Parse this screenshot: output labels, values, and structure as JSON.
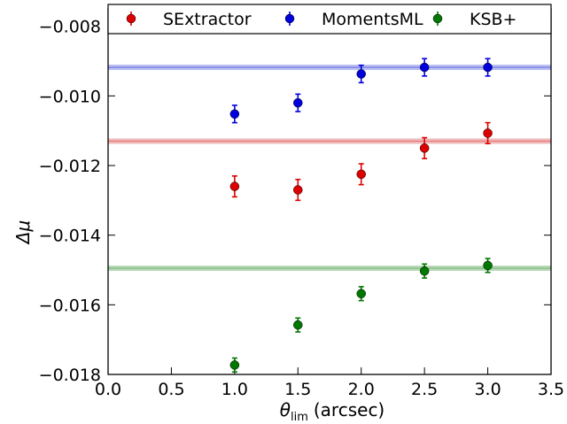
{
  "chart_data": {
    "type": "scatter",
    "xlabel_symbol": "θ",
    "xlabel_subscript": "lim",
    "xlabel_unit": "(arcsec)",
    "ylabel_symbol": "Δμ",
    "xlim": [
      0.0,
      3.5
    ],
    "ylim": [
      -0.018,
      -0.0075
    ],
    "xticks": [
      0.0,
      0.5,
      1.0,
      1.5,
      2.0,
      2.5,
      3.0,
      3.5
    ],
    "xtick_labels": [
      "0.0",
      "0.5",
      "1.0",
      "1.5",
      "2.0",
      "2.5",
      "3.0",
      "3.5"
    ],
    "yticks": [
      -0.018,
      -0.016,
      -0.014,
      -0.012,
      -0.01,
      -0.008
    ],
    "ytick_labels": [
      "−0.018",
      "−0.016",
      "−0.014",
      "−0.012",
      "−0.010",
      "−0.008"
    ],
    "grid": false,
    "legend_position": "top",
    "series": [
      {
        "name": "SExtractor",
        "color": "#dd0000",
        "band_color": "#e8a0a0",
        "reference_line": -0.0113,
        "x": [
          1.0,
          1.5,
          2.0,
          2.5,
          3.0
        ],
        "y": [
          -0.0126,
          -0.0127,
          -0.01225,
          -0.0115,
          -0.01107
        ],
        "err": [
          0.0003,
          0.0003,
          0.0003,
          0.0003,
          0.0003
        ]
      },
      {
        "name": "MomentsML",
        "color": "#0000dd",
        "band_color": "#a0a8e8",
        "reference_line": -0.00918,
        "x": [
          1.0,
          1.5,
          2.0,
          2.5,
          3.0
        ],
        "y": [
          -0.01052,
          -0.0102,
          -0.00937,
          -0.00918,
          -0.00918
        ],
        "err": [
          0.00025,
          0.00025,
          0.00025,
          0.00025,
          0.00025
        ]
      },
      {
        "name": "KSB+",
        "color": "#007700",
        "band_color": "#a0cca0",
        "reference_line": -0.01495,
        "x": [
          1.0,
          1.5,
          2.0,
          2.5,
          3.0
        ],
        "y": [
          -0.01773,
          -0.01658,
          -0.01568,
          -0.01503,
          -0.01487
        ],
        "err": [
          0.0002,
          0.0002,
          0.0002,
          0.0002,
          0.0002
        ]
      }
    ]
  }
}
